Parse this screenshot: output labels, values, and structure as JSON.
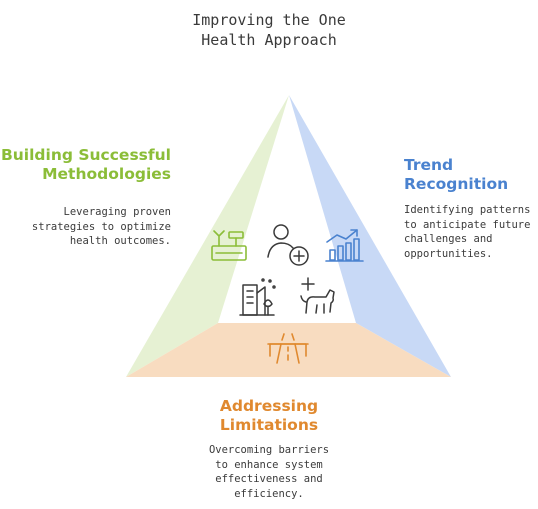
{
  "title": {
    "line1": "Improving the One",
    "line2": "Health Approach"
  },
  "sections": {
    "left": {
      "heading": [
        "Building Successful",
        "Methodologies"
      ],
      "description": [
        "Leveraging proven",
        "strategies to optimize",
        "health outcomes."
      ],
      "color": "#8bbd38",
      "fill": "#e6f1d3"
    },
    "right": {
      "heading": [
        "Trend",
        "Recognition"
      ],
      "description": [
        "Identifying patterns",
        "to anticipate future",
        "challenges and",
        "opportunities."
      ],
      "color": "#4a82cf",
      "fill": "#c8d9f6"
    },
    "bottom": {
      "heading": [
        "Addressing",
        "Limitations"
      ],
      "description": [
        "Overcoming barriers",
        "to enhance system",
        "effectiveness and",
        "efficiency."
      ],
      "color": "#e0892f",
      "fill": "#f8dcc0"
    }
  },
  "icons": {
    "left": "tools-box-icon",
    "right": "growth-chart-icon",
    "bottom": "road-icon",
    "center": [
      "person-health-icon",
      "city-environment-icon",
      "animal-health-icon"
    ]
  }
}
